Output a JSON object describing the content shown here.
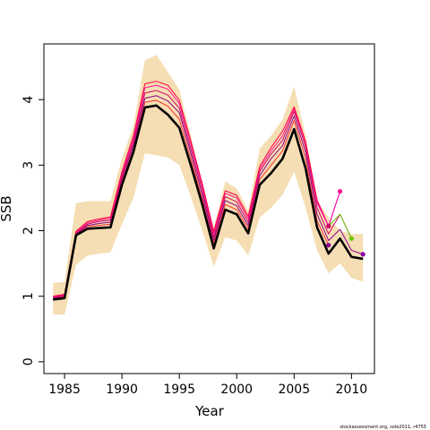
{
  "chart_data": {
    "type": "line",
    "xlabel": "Year",
    "ylabel": "SSB",
    "xlim": [
      1983.2,
      2012.0
    ],
    "ylim": [
      -0.18,
      4.85
    ],
    "x_ticks": [
      1985,
      1990,
      1995,
      2000,
      2005,
      2010
    ],
    "y_ticks": [
      0,
      1,
      2,
      3,
      4
    ],
    "grid": false,
    "legend": "none",
    "credit": "stockassessment.org, sole2011, r4755",
    "colors": {
      "band": "#f5deb3",
      "main": "#000000",
      "retro": [
        "#8b008b",
        "#cc0066",
        "#ff1493",
        "#ff0040",
        "#ff3030"
      ],
      "green": "#66cc00",
      "magenta": "#ff00aa",
      "purple": "#8800aa"
    },
    "band": {
      "x": [
        1984,
        1985,
        1986,
        1987,
        1988,
        1989,
        1990,
        1991,
        1992,
        1993,
        1994,
        1995,
        1996,
        1997,
        1998,
        1999,
        2000,
        2001,
        2002,
        2003,
        2004,
        2005,
        2006,
        2007,
        2008,
        2009,
        2010,
        2011
      ],
      "upper": [
        1.2,
        1.22,
        2.42,
        2.45,
        2.45,
        2.45,
        3.1,
        3.6,
        4.6,
        4.68,
        4.42,
        4.15,
        3.45,
        2.7,
        2.05,
        2.75,
        2.65,
        2.3,
        3.25,
        3.45,
        3.7,
        4.2,
        3.45,
        2.45,
        2.2,
        2.0,
        1.95,
        1.95
      ],
      "lower": [
        0.72,
        0.72,
        1.48,
        1.62,
        1.65,
        1.67,
        2.1,
        2.5,
        3.18,
        3.15,
        3.12,
        3.0,
        2.52,
        2.0,
        1.45,
        1.9,
        1.85,
        1.62,
        2.2,
        2.35,
        2.55,
        2.9,
        2.35,
        1.7,
        1.35,
        1.5,
        1.28,
        1.22
      ]
    },
    "series": [
      {
        "x": [
          1984,
          1985,
          1986,
          1987,
          1988,
          1989,
          1990,
          1991,
          1992,
          1993,
          1994,
          1995,
          1996,
          1997,
          1998,
          1999,
          2000,
          2001,
          2002,
          2003,
          2004,
          2005,
          2006,
          2007,
          2008,
          2009,
          2010,
          2011
        ],
        "y": [
          0.95,
          0.97,
          1.93,
          2.03,
          2.04,
          2.05,
          2.7,
          3.2,
          3.88,
          3.91,
          3.77,
          3.57,
          3.0,
          2.4,
          1.73,
          2.32,
          2.25,
          1.96,
          2.7,
          2.88,
          3.1,
          3.55,
          2.95,
          2.05,
          1.65,
          1.88,
          1.6,
          1.57
        ],
        "role": "main"
      },
      {
        "x": [
          1984,
          1985,
          1986,
          1987,
          1988,
          1989,
          1990,
          1991,
          1992,
          1993,
          1994,
          1995,
          1996,
          1997,
          1998,
          1999,
          2000,
          2001,
          2002,
          2003,
          2004,
          2005,
          2006,
          2007,
          2008,
          2009,
          2010,
          2011
        ],
        "y": [
          0.97,
          1.0,
          1.95,
          2.08,
          2.11,
          2.13,
          2.79,
          3.3,
          4.02,
          4.06,
          3.98,
          3.8,
          3.18,
          2.55,
          1.85,
          2.46,
          2.38,
          2.08,
          2.84,
          3.1,
          3.3,
          3.75,
          3.2,
          2.25,
          1.85,
          2.02,
          1.7,
          1.64
        ],
        "role": "retro",
        "end": 2011
      },
      {
        "x": [
          1984,
          1985,
          1986,
          1987,
          1988,
          1989,
          1990,
          1991,
          1992,
          1993,
          1994,
          1995,
          1996,
          1997,
          1998,
          1999,
          2000,
          2001,
          2002,
          2003,
          2004,
          2005,
          2006,
          2007,
          2008,
          2009,
          2010
        ],
        "y": [
          0.98,
          1.01,
          1.96,
          2.1,
          2.14,
          2.16,
          2.83,
          3.35,
          4.1,
          4.14,
          4.07,
          3.87,
          3.25,
          2.62,
          1.9,
          2.52,
          2.44,
          2.13,
          2.9,
          3.17,
          3.38,
          3.82,
          3.28,
          2.35,
          1.95,
          2.25,
          1.88
        ],
        "role": "retro",
        "end": 2010
      },
      {
        "x": [
          1984,
          1985,
          1986,
          1987,
          1988,
          1989,
          1990,
          1991,
          1992,
          1993,
          1994,
          1995,
          1996,
          1997,
          1998,
          1999,
          2000,
          2001,
          2002,
          2003,
          2004,
          2005,
          2006,
          2007,
          2008,
          2009
        ],
        "y": [
          0.99,
          1.02,
          1.98,
          2.12,
          2.16,
          2.19,
          2.87,
          3.4,
          4.18,
          4.22,
          4.16,
          3.94,
          3.32,
          2.68,
          1.95,
          2.57,
          2.5,
          2.18,
          2.94,
          3.22,
          3.45,
          3.86,
          3.34,
          2.43,
          2.07,
          2.6
        ],
        "role": "retro",
        "end": 2009
      },
      {
        "x": [
          1984,
          1985,
          1986,
          1987,
          1988,
          1989,
          1990,
          1991,
          1992,
          1993,
          1994,
          1995,
          1996,
          1997,
          1998,
          1999,
          2000,
          2001,
          2002,
          2003,
          2004,
          2005,
          2006,
          2007,
          2008
        ],
        "y": [
          1.0,
          1.03,
          1.99,
          2.14,
          2.18,
          2.21,
          2.9,
          3.45,
          4.24,
          4.28,
          4.22,
          3.99,
          3.37,
          2.72,
          1.99,
          2.61,
          2.54,
          2.22,
          2.98,
          3.27,
          3.52,
          3.89,
          3.36,
          2.47,
          2.07
        ],
        "role": "retro",
        "end": 2008
      },
      {
        "x": [
          1984,
          1985,
          1986,
          1987,
          1988,
          1989,
          1990,
          1991,
          1992,
          1993,
          1994,
          1995,
          1996,
          1997,
          1998,
          1999,
          2000,
          2001,
          2002,
          2003,
          2004,
          2005,
          2006,
          2007,
          2008
        ],
        "y": [
          0.96,
          0.99,
          1.94,
          2.06,
          2.08,
          2.1,
          2.75,
          3.25,
          3.96,
          3.99,
          3.9,
          3.7,
          3.1,
          2.48,
          1.8,
          2.4,
          2.32,
          2.03,
          2.78,
          3.0,
          3.22,
          3.68,
          3.1,
          2.15,
          1.78
        ],
        "role": "retro",
        "end": 2008
      }
    ],
    "endpoints": [
      {
        "x": 2008,
        "y": 2.07,
        "color": "#cc0066"
      },
      {
        "x": 2008,
        "y": 1.78,
        "color": "#8b008b"
      },
      {
        "x": 2009,
        "y": 2.6,
        "color": "#ff1493"
      },
      {
        "x": 2010,
        "y": 1.88,
        "color": "#66cc00"
      },
      {
        "x": 2011,
        "y": 1.64,
        "color": "#8800aa"
      }
    ]
  }
}
